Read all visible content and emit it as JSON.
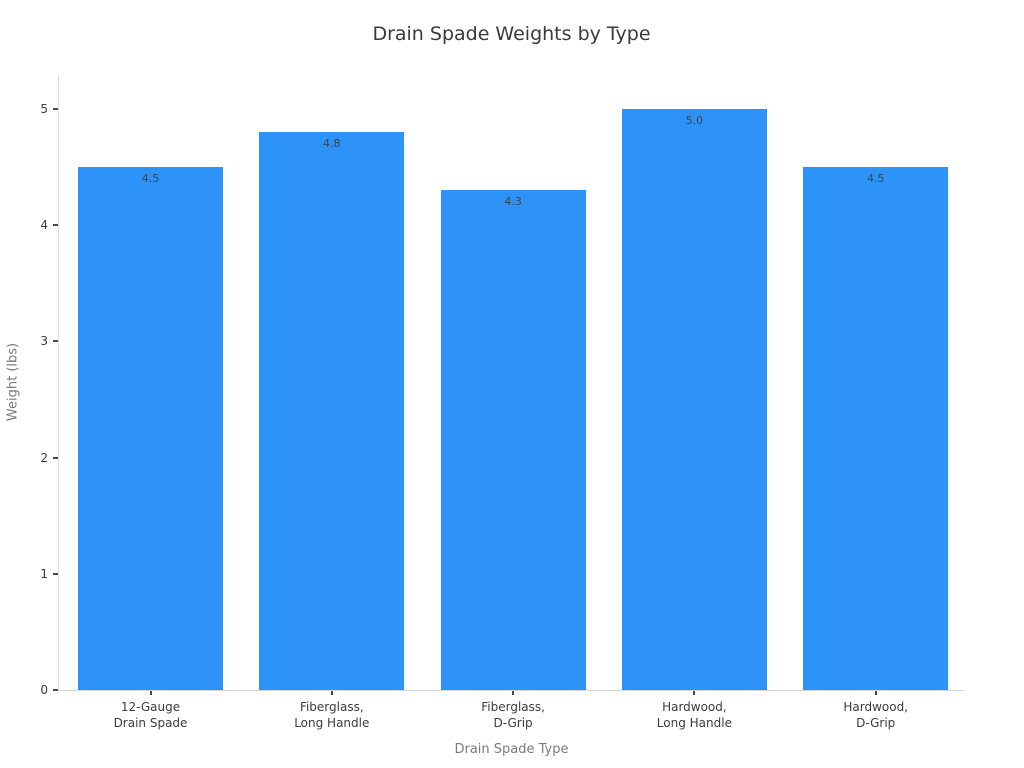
{
  "chart_data": {
    "type": "bar",
    "title": "Drain Spade Weights by Type",
    "xlabel": "Drain Spade Type",
    "ylabel": "Weight (lbs)",
    "categories": [
      "12-Gauge\nDrain Spade",
      "Fiberglass,\nLong Handle",
      "Fiberglass,\nD-Grip",
      "Hardwood,\nLong Handle",
      "Hardwood,\nD-Grip"
    ],
    "values": [
      4.5,
      4.8,
      4.3,
      5.0,
      4.5
    ],
    "value_labels": [
      "4.5",
      "4.8",
      "4.3",
      "5.0",
      "4.5"
    ],
    "y_ticks": [
      0,
      1,
      2,
      3,
      4,
      5
    ],
    "ylim": [
      0,
      5.29
    ],
    "grid": false,
    "legend": "none",
    "bar_color": "#2E93F8",
    "colors": {
      "title_text": "#3a3a3a",
      "tick_text": "#3c3c3c",
      "axis_title_text": "#7b7b7b",
      "value_label_text": "#3b444c",
      "spine": "#d8d8d8",
      "background": "#ffffff"
    }
  }
}
